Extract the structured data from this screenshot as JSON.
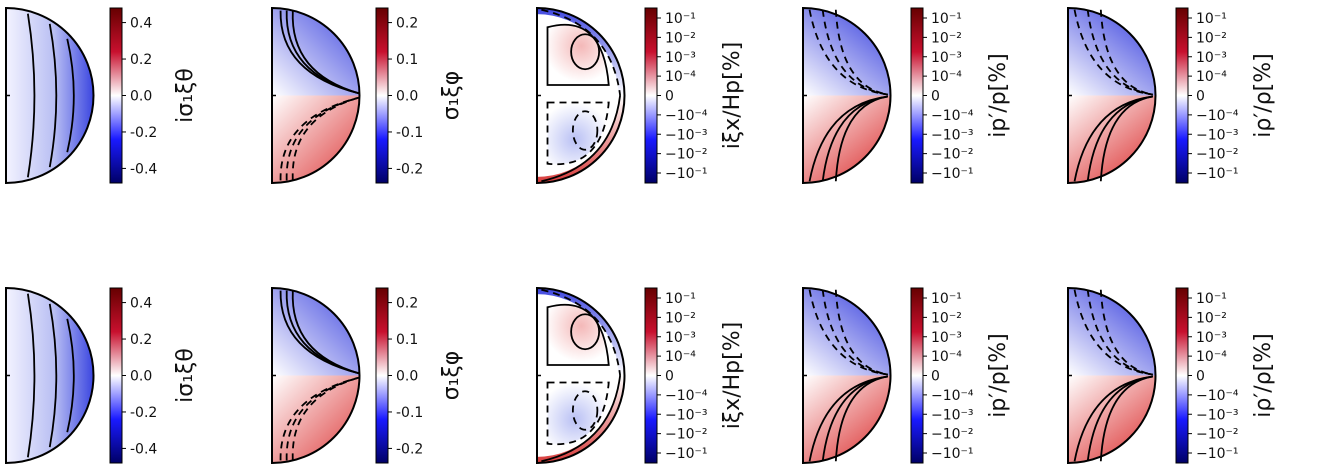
{
  "chart_data": [
    {
      "type": "heatmap",
      "panel": "row1-col1",
      "colorbar_label": "iσ₁ξθ",
      "colorbar_ticks": [
        "0.4",
        "0.2",
        "0.0",
        "-0.2",
        "-0.4"
      ],
      "colorbar_range": [
        -0.48,
        0.48
      ],
      "scale": "linear",
      "colormap": "seismic",
      "contour_pattern": "vertical_arcs",
      "field_sign": "negative"
    },
    {
      "type": "heatmap",
      "panel": "row1-col2",
      "colorbar_label": "σ₁ξφ",
      "colorbar_ticks": [
        "0.2",
        "0.1",
        "0.0",
        "-0.1",
        "-0.2"
      ],
      "colorbar_range": [
        -0.24,
        0.24
      ],
      "scale": "linear",
      "colormap": "seismic",
      "contour_pattern": "antisymmetric_fans",
      "field_sign": "antisymmetric"
    },
    {
      "type": "heatmap",
      "panel": "row1-col3",
      "colorbar_label": "iξx/Hp[%]",
      "colorbar_ticks": [
        "10⁻¹",
        "10⁻²",
        "10⁻³",
        "10⁻⁴",
        "0",
        "−10⁻⁴",
        "−10⁻³",
        "−10⁻²",
        "−10⁻¹"
      ],
      "scale": "symlog",
      "colormap": "seismic",
      "contour_pattern": "cells",
      "field_sign": "cellular"
    },
    {
      "type": "heatmap",
      "panel": "row1-col4",
      "colorbar_label": "ip′/p[%]",
      "colorbar_ticks": [
        "10⁻¹",
        "10⁻²",
        "10⁻³",
        "10⁻⁴",
        "0",
        "−10⁻⁴",
        "−10⁻³",
        "−10⁻²",
        "−10⁻¹"
      ],
      "scale": "symlog",
      "colormap": "seismic",
      "contour_pattern": "fans",
      "field_sign": "antisymmetric"
    },
    {
      "type": "heatmap",
      "panel": "row1-col5",
      "colorbar_label": "iρ′/ρ[%]",
      "colorbar_ticks": [
        "10⁻¹",
        "10⁻²",
        "10⁻³",
        "10⁻⁴",
        "0",
        "−10⁻⁴",
        "−10⁻³",
        "−10⁻²",
        "−10⁻¹"
      ],
      "scale": "symlog",
      "colormap": "seismic",
      "contour_pattern": "fans",
      "field_sign": "antisymmetric"
    },
    {
      "type": "heatmap",
      "panel": "row2-col1",
      "colorbar_label": "iσ₁ξθ",
      "colorbar_ticks": [
        "0.4",
        "0.2",
        "0.0",
        "-0.2",
        "-0.4"
      ],
      "colorbar_range": [
        -0.48,
        0.48
      ],
      "scale": "linear",
      "colormap": "seismic",
      "contour_pattern": "vertical_arcs",
      "field_sign": "negative"
    },
    {
      "type": "heatmap",
      "panel": "row2-col2",
      "colorbar_label": "σ₁ξφ",
      "colorbar_ticks": [
        "0.2",
        "0.1",
        "0.0",
        "-0.1",
        "-0.2"
      ],
      "colorbar_range": [
        -0.24,
        0.24
      ],
      "scale": "linear",
      "colormap": "seismic",
      "contour_pattern": "antisymmetric_fans",
      "field_sign": "antisymmetric"
    },
    {
      "type": "heatmap",
      "panel": "row2-col3",
      "colorbar_label": "iξx/Hp[%]",
      "colorbar_ticks": [
        "10⁻¹",
        "10⁻²",
        "10⁻³",
        "10⁻⁴",
        "0",
        "−10⁻⁴",
        "−10⁻³",
        "−10⁻²",
        "−10⁻¹"
      ],
      "scale": "symlog",
      "colormap": "seismic",
      "contour_pattern": "cells",
      "field_sign": "cellular"
    },
    {
      "type": "heatmap",
      "panel": "row2-col4",
      "colorbar_label": "ip′/p[%]",
      "colorbar_ticks": [
        "10⁻¹",
        "10⁻²",
        "10⁻³",
        "10⁻⁴",
        "0",
        "−10⁻⁴",
        "−10⁻³",
        "−10⁻²",
        "−10⁻¹"
      ],
      "scale": "symlog",
      "colormap": "seismic",
      "contour_pattern": "fans",
      "field_sign": "antisymmetric"
    },
    {
      "type": "heatmap",
      "panel": "row2-col5",
      "colorbar_label": "iρ′/ρ[%]",
      "colorbar_ticks": [
        "10⁻¹",
        "10⁻²",
        "10⁻³",
        "10⁻⁴",
        "0",
        "−10⁻⁴",
        "−10⁻³",
        "−10⁻²",
        "−10⁻¹"
      ],
      "scale": "symlog",
      "colormap": "seismic",
      "contour_pattern": "fans",
      "field_sign": "antisymmetric"
    }
  ],
  "colors": {
    "positive": "#c8102e",
    "negative": "#1a1aff",
    "zero": "#ffffff",
    "positive_max": "#660000",
    "negative_max": "#000066",
    "contour": "#000000"
  }
}
